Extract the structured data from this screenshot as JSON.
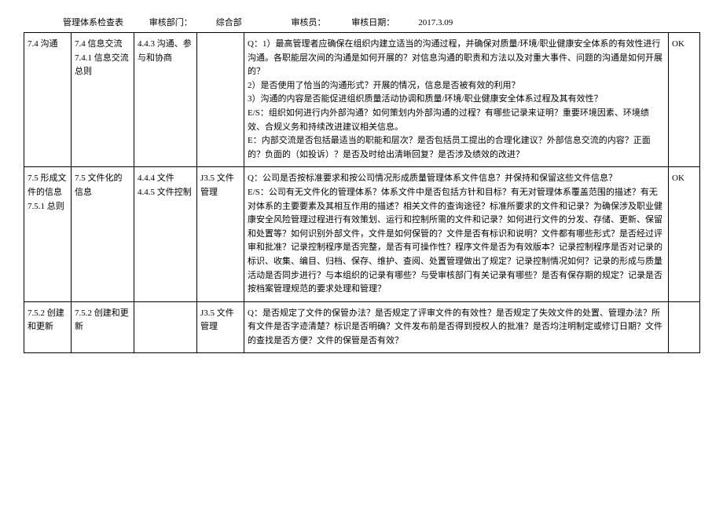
{
  "header": {
    "title": "管理体系检查表",
    "dept_label": "审核部门：",
    "dept": "综合部",
    "auditor_label": "审核员：",
    "date_label": "审核日期：",
    "date": "2017.3.09"
  },
  "rows": [
    {
      "c1": "7.4 沟通",
      "c2": "7.4 信息交流\n7.4.1 信息交流总则",
      "c3": "4.4.3 沟通、参与和协商",
      "c4": "",
      "c5": "Q：1）最高管理者应确保在组织内建立适当的沟通过程，并确保对质量/环境/职业健康安全体系的有效性进行沟通。各职能层次间的沟通是如何开展的？对信息沟通的职责和方法以及对重大事件、问题的沟通是如何开展的？\n2）是否使用了恰当的沟通形式？开展的情况，信息是否被有效的利用？\n3）沟通的内容是否能促进组织质量活动协调和质量/环境/职业健康安全体系过程及其有效性？\nE/S：组织如何进行内外部沟通？如何策划内外部沟通的过程？有哪些记录来证明？重要环境因素、环境绩效、合规义务和持续改进建议相关信息。\nE：内部交流是否包括最适当的职能和层次？是否包括员工提出的合理化建议？外部信息交流的内容？正面的？负面的（如投诉）？是否及时给出清晰回复？是否涉及绩效的改进？",
      "c6": "OK"
    },
    {
      "c1": "7.5 形成文件的信息\n7.5.1 总则",
      "c2": "7.5 文件化的信息",
      "c3": "4.4.4 文件\n4.4.5 文件控制",
      "c4": "J3.5 文件管理",
      "c5": "Q：公司是否按标准要求和按公司情况形成质量管理体系文件信息？并保持和保留这些文件信息？\nE/S：公司有无文件化的管理体系？体系文件中是否包括方针和目标？有无对管理体系覆盖范围的描述？有无对体系的主要要素及其相互作用的描述？相关文件的查询途径？标准所要求的文件和记录？为确保涉及职业健康安全风险管理过程进行有效策划、运行和控制所需的文件和记录？如何进行文件的分发、存储、更新、保留和处置等？如何识别外部文件，文件是如何保管的？文件是否有标识和说明？文件都有哪些形式？是否经过评审和批准？记录控制程序是否完整，是否有可操作性？程序文件是否为有效版本？记录控制程序是否对记录的标识、收集、编目、归档、保存、维护、查阅、处置管理做出了规定？记录控制情况如何？记录的形成与质量活动是否同步进行？与本组织的记录有哪些？与受审核部门有关记录有哪些？是否有保存期的规定？记录是否按档案管理规范的要求处理和管理？",
      "c6": "OK"
    },
    {
      "c1": "7.5.2 创建和更新",
      "c2": "7.5.2 创建和更新",
      "c3": "",
      "c4": "J3.5 文件管理",
      "c5": "Q：是否规定了文件的保管办法？是否规定了评审文件的有效性？是否规定了失效文件的处置、管理办法？所有文件是否字迹清楚？标识是否明确？文件发布前是否得到授权人的批准？是否均注明制定或修订日期？文件的查找是否方便？文件的保管是否有效？",
      "c6": ""
    }
  ]
}
